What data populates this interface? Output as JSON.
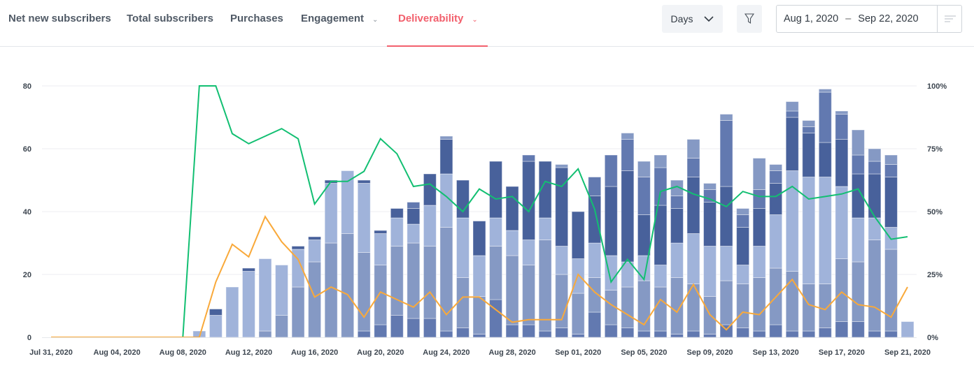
{
  "tabs": [
    {
      "label": "Net new subscribers",
      "active": false
    },
    {
      "label": "Total subscribers",
      "active": false
    },
    {
      "label": "Purchases",
      "active": false
    },
    {
      "label": "Engagement",
      "active": false,
      "dropdown": true
    },
    {
      "label": "Deliverability",
      "active": true,
      "dropdown": true
    }
  ],
  "toolbar": {
    "granularity": "Days",
    "date_from": "Aug 1, 2020",
    "date_sep": "–",
    "date_to": "Sep 22, 2020",
    "icons": [
      "chevron-down-icon",
      "filter-icon",
      "menu-lines-icon"
    ]
  },
  "colors": {
    "accent": "#f2606d",
    "green_line": "#12bf72",
    "orange_line": "#f9a93a"
  },
  "chart_data": {
    "type": "bar+line",
    "x_start": "2020-07-31",
    "x_tick_labels": [
      "Jul 31, 2020",
      "Aug 04, 2020",
      "Aug 08, 2020",
      "Aug 12, 2020",
      "Aug 16, 2020",
      "Aug 20, 2020",
      "Aug 24, 2020",
      "Aug 28, 2020",
      "Sep 01, 2020",
      "Sep 05, 2020",
      "Sep 09, 2020",
      "Sep 13, 2020",
      "Sep 17, 2020",
      "Sep 21, 2020"
    ],
    "y_left": {
      "ticks": [
        "0",
        "20",
        "40",
        "60",
        "80"
      ],
      "range": [
        0,
        80
      ]
    },
    "y_right": {
      "ticks": [
        "0%",
        "25%",
        "50%",
        "75%",
        "100%"
      ],
      "range": [
        0,
        100
      ]
    },
    "grid": true,
    "bar_series_colors": [
      "#6279b0",
      "#8599c4",
      "#a0b3da",
      "#48619b",
      "#6279b0",
      "#8599c4"
    ],
    "bar_dates": [
      "Aug 09",
      "Aug 10",
      "Aug 11",
      "Aug 12",
      "Aug 13",
      "Aug 14",
      "Aug 15",
      "Aug 16",
      "Aug 17",
      "Aug 18",
      "Aug 19",
      "Aug 20",
      "Aug 21",
      "Aug 22",
      "Aug 23",
      "Aug 24",
      "Aug 25",
      "Aug 26",
      "Aug 27",
      "Aug 28",
      "Aug 29",
      "Aug 30",
      "Aug 31",
      "Sep 01",
      "Sep 02",
      "Sep 03",
      "Sep 04",
      "Sep 05",
      "Sep 06",
      "Sep 07",
      "Sep 08",
      "Sep 09",
      "Sep 10",
      "Sep 11",
      "Sep 12",
      "Sep 13",
      "Sep 14",
      "Sep 15",
      "Sep 16",
      "Sep 17",
      "Sep 18",
      "Sep 19",
      "Sep 20",
      "Sep 21"
    ],
    "bar_stacks": [
      [
        0,
        0,
        2,
        0,
        0,
        0
      ],
      [
        0,
        0,
        7,
        2,
        0,
        0
      ],
      [
        0,
        0,
        16,
        0,
        0,
        0
      ],
      [
        0,
        0,
        21,
        1,
        0,
        0
      ],
      [
        0,
        2,
        23,
        0,
        0,
        0
      ],
      [
        0,
        7,
        16,
        0,
        0,
        0
      ],
      [
        0,
        16,
        12,
        1,
        0,
        0
      ],
      [
        0,
        24,
        7,
        1,
        0,
        0
      ],
      [
        0,
        30,
        19,
        1,
        0,
        0
      ],
      [
        0,
        33,
        20,
        0,
        0,
        0
      ],
      [
        2,
        25,
        22,
        1,
        0,
        0
      ],
      [
        4,
        19,
        10,
        1,
        0,
        0
      ],
      [
        7,
        22,
        9,
        3,
        0,
        0
      ],
      [
        6,
        24,
        6,
        5,
        2,
        0
      ],
      [
        6,
        23,
        13,
        10,
        0,
        0
      ],
      [
        2,
        33,
        17,
        11,
        0,
        1
      ],
      [
        3,
        16,
        19,
        12,
        0,
        0
      ],
      [
        1,
        12,
        13,
        11,
        0,
        0
      ],
      [
        12,
        17,
        9,
        18,
        0,
        0
      ],
      [
        4,
        22,
        8,
        14,
        0,
        0
      ],
      [
        4,
        19,
        8,
        25,
        2,
        0
      ],
      [
        2,
        29,
        7,
        18,
        0,
        0
      ],
      [
        3,
        17,
        9,
        25,
        0,
        1
      ],
      [
        1,
        13,
        11,
        15,
        0,
        0
      ],
      [
        8,
        11,
        11,
        15,
        6,
        0
      ],
      [
        4,
        11,
        11,
        22,
        10,
        0
      ],
      [
        3,
        13,
        8,
        29,
        10,
        2
      ],
      [
        2,
        16,
        8,
        13,
        12,
        5
      ],
      [
        2,
        14,
        7,
        19,
        12,
        4
      ],
      [
        1,
        18,
        11,
        11,
        4,
        5
      ],
      [
        2,
        15,
        16,
        18,
        6,
        6
      ],
      [
        1,
        12,
        16,
        14,
        4,
        2
      ],
      [
        4,
        14,
        11,
        19,
        21,
        2
      ],
      [
        3,
        14,
        6,
        12,
        4,
        2
      ],
      [
        2,
        17,
        10,
        12,
        6,
        10
      ],
      [
        4,
        18,
        17,
        10,
        4,
        2
      ],
      [
        2,
        19,
        32,
        17,
        2,
        3
      ],
      [
        2,
        15,
        34,
        14,
        2,
        2
      ],
      [
        3,
        14,
        34,
        11,
        16,
        1
      ],
      [
        5,
        20,
        23,
        15,
        8,
        1
      ],
      [
        5,
        19,
        14,
        14,
        6,
        8
      ],
      [
        2,
        29,
        7,
        14,
        4,
        4
      ],
      [
        2,
        26,
        7,
        16,
        4,
        3
      ],
      [
        0,
        0,
        5,
        0,
        0,
        0
      ]
    ],
    "bar_first_day_offset": 9,
    "lines": [
      {
        "color": "#12bf72",
        "axis": "right",
        "values": [
          0,
          0,
          0,
          0,
          0,
          0,
          0,
          0,
          0,
          100,
          100,
          81,
          77,
          80,
          83,
          79,
          53,
          62,
          62,
          66,
          79,
          73,
          60,
          61,
          56,
          50,
          59,
          55,
          56,
          50,
          62,
          60,
          67,
          51,
          22,
          31,
          23,
          58,
          60,
          57,
          55,
          52,
          58,
          56,
          56,
          60,
          55,
          56,
          57,
          59,
          48,
          39,
          40
        ]
      },
      {
        "color": "#f9a93a",
        "axis": "right",
        "values": [
          0,
          0,
          0,
          0,
          0,
          0,
          0,
          0,
          0,
          0,
          22,
          37,
          32,
          48,
          38,
          31,
          16,
          20,
          17,
          8,
          18,
          15,
          12,
          18,
          9,
          16,
          16,
          11,
          6,
          7,
          7,
          7,
          25,
          18,
          13,
          9,
          5,
          15,
          10,
          21,
          9,
          3,
          10,
          9,
          16,
          23,
          13,
          11,
          18,
          13,
          12,
          8,
          20
        ]
      }
    ]
  }
}
